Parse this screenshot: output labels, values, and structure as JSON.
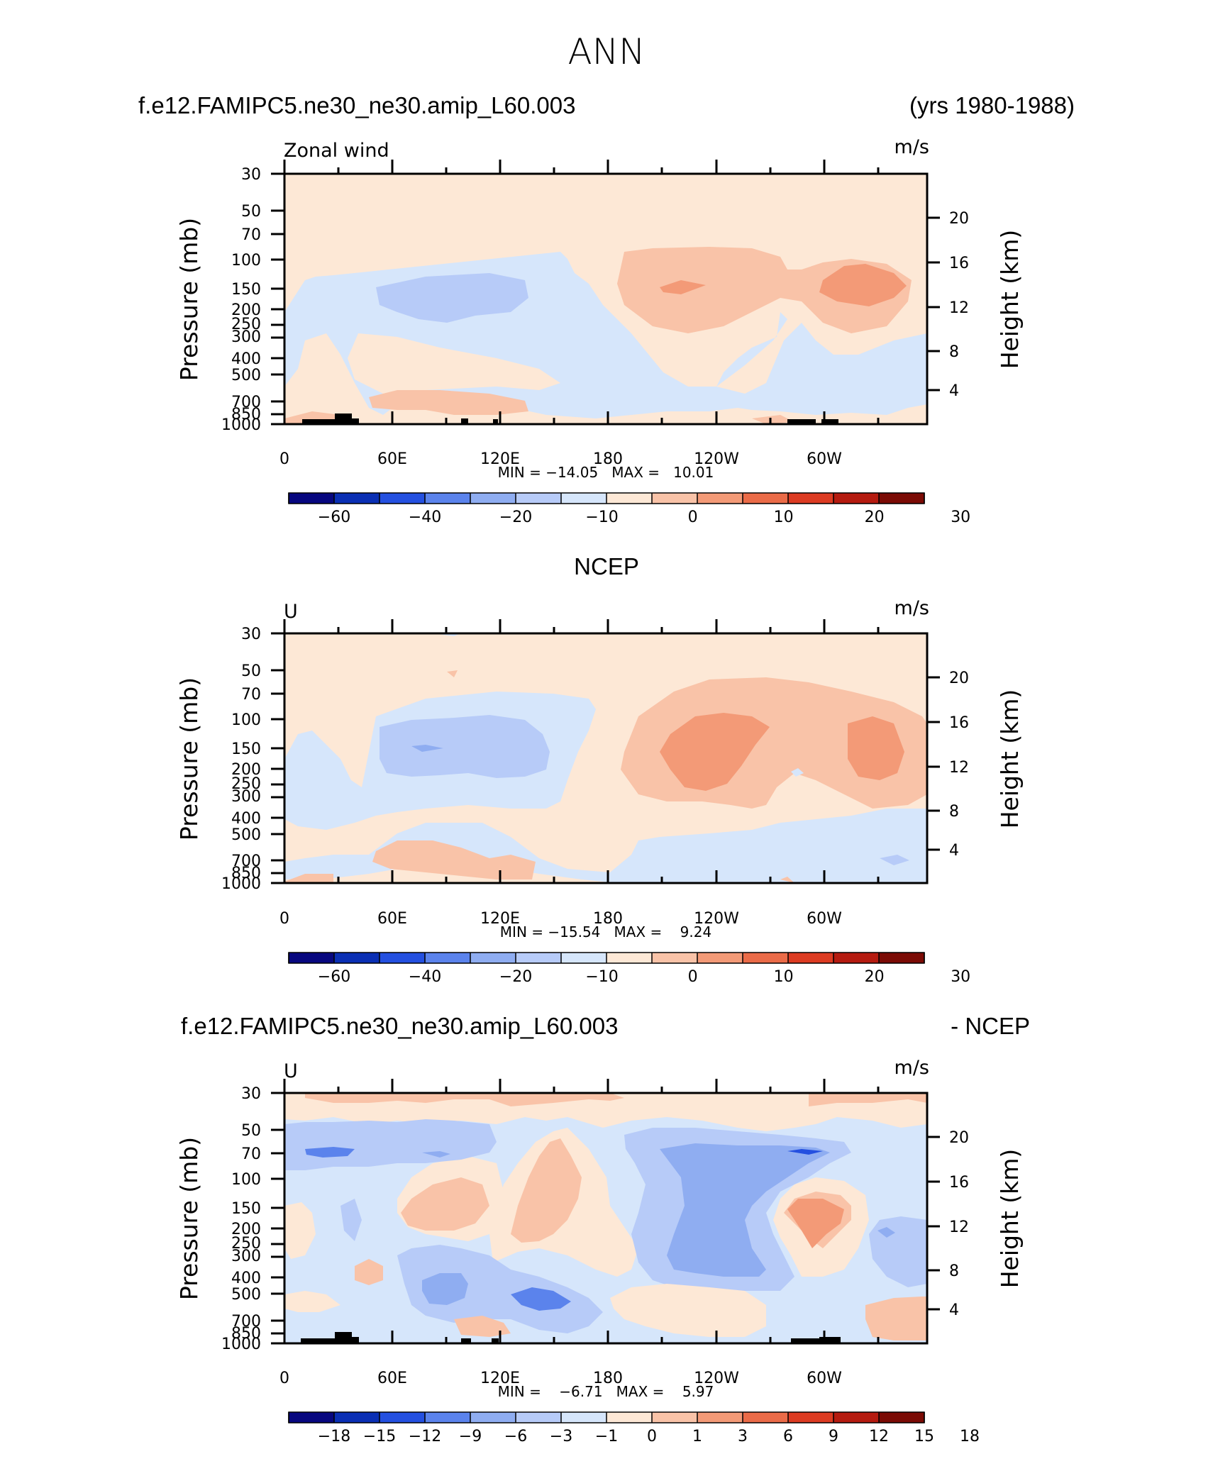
{
  "title": "ANN",
  "chart_data": [
    {
      "type": "contour",
      "case_title": "f.e12.FAMIPC5.ne30_ne30.amip_L60.003",
      "years": "(yrs 1980-1988)",
      "var_label": "Zonal wind",
      "units": "m/s",
      "ylabel": "Pressure (mb)",
      "ylabel_right": "Height (km)",
      "pressure_ticks": [
        "30",
        "50",
        "70",
        "100",
        "150",
        "200",
        "250",
        "300",
        "400",
        "500",
        "700",
        "850",
        "1000"
      ],
      "height_ticks": [
        "20",
        "16",
        "12",
        "8",
        "4"
      ],
      "lon_ticks": [
        "0",
        "60E",
        "120E",
        "180",
        "120W",
        "60W"
      ],
      "stats": "MIN = −14.05   MAX =   10.01",
      "colorbar_labels": [
        "−60",
        "−40",
        "−20",
        "−10",
        "0",
        "10",
        "20",
        "30"
      ],
      "colorbar_colors": [
        "#07077f",
        "#0a2fb4",
        "#2450e0",
        "#5b83ec",
        "#8fadf1",
        "#b7cbf8",
        "#d6e6fb",
        "#fde8d6",
        "#f9c3a8",
        "#f39a77",
        "#ea6b48",
        "#dc3b22",
        "#b51b10",
        "#7b0b05"
      ]
    },
    {
      "type": "contour",
      "case_title": "NCEP",
      "var_label": "U",
      "units": "m/s",
      "ylabel": "Pressure (mb)",
      "ylabel_right": "Height (km)",
      "pressure_ticks": [
        "30",
        "50",
        "70",
        "100",
        "150",
        "200",
        "250",
        "300",
        "400",
        "500",
        "700",
        "850",
        "1000"
      ],
      "height_ticks": [
        "20",
        "16",
        "12",
        "8",
        "4"
      ],
      "lon_ticks": [
        "0",
        "60E",
        "120E",
        "180",
        "120W",
        "60W"
      ],
      "stats": "MIN = −15.54   MAX =    9.24",
      "colorbar_labels": [
        "−60",
        "−40",
        "−20",
        "−10",
        "0",
        "10",
        "20",
        "30"
      ],
      "colorbar_colors": [
        "#07077f",
        "#0a2fb4",
        "#2450e0",
        "#5b83ec",
        "#8fadf1",
        "#b7cbf8",
        "#d6e6fb",
        "#fde8d6",
        "#f9c3a8",
        "#f39a77",
        "#ea6b48",
        "#dc3b22",
        "#b51b10",
        "#7b0b05"
      ]
    },
    {
      "type": "contour",
      "case_title": "f.e12.FAMIPC5.ne30_ne30.amip_L60.003",
      "case_title_right": "- NCEP",
      "var_label": "U",
      "units": "m/s",
      "ylabel": "Pressure (mb)",
      "ylabel_right": "Height (km)",
      "pressure_ticks": [
        "30",
        "50",
        "70",
        "100",
        "150",
        "200",
        "250",
        "300",
        "400",
        "500",
        "700",
        "850",
        "1000"
      ],
      "height_ticks": [
        "20",
        "16",
        "12",
        "8",
        "4"
      ],
      "lon_ticks": [
        "0",
        "60E",
        "120E",
        "180",
        "120W",
        "60W"
      ],
      "stats": "MIN =    −6.71   MAX =    5.97",
      "colorbar_labels": [
        "−18",
        "−15",
        "−12",
        "−9",
        "−6",
        "−3",
        "−1",
        "0",
        "1",
        "3",
        "6",
        "9",
        "12",
        "15",
        "18"
      ],
      "colorbar_colors": [
        "#07077f",
        "#0a2fb4",
        "#2450e0",
        "#5b83ec",
        "#8fadf1",
        "#b7cbf8",
        "#d6e6fb",
        "#fde8d6",
        "#f9c3a8",
        "#f39a77",
        "#ea6b48",
        "#dc3b22",
        "#b51b10",
        "#7b0b05"
      ]
    }
  ]
}
